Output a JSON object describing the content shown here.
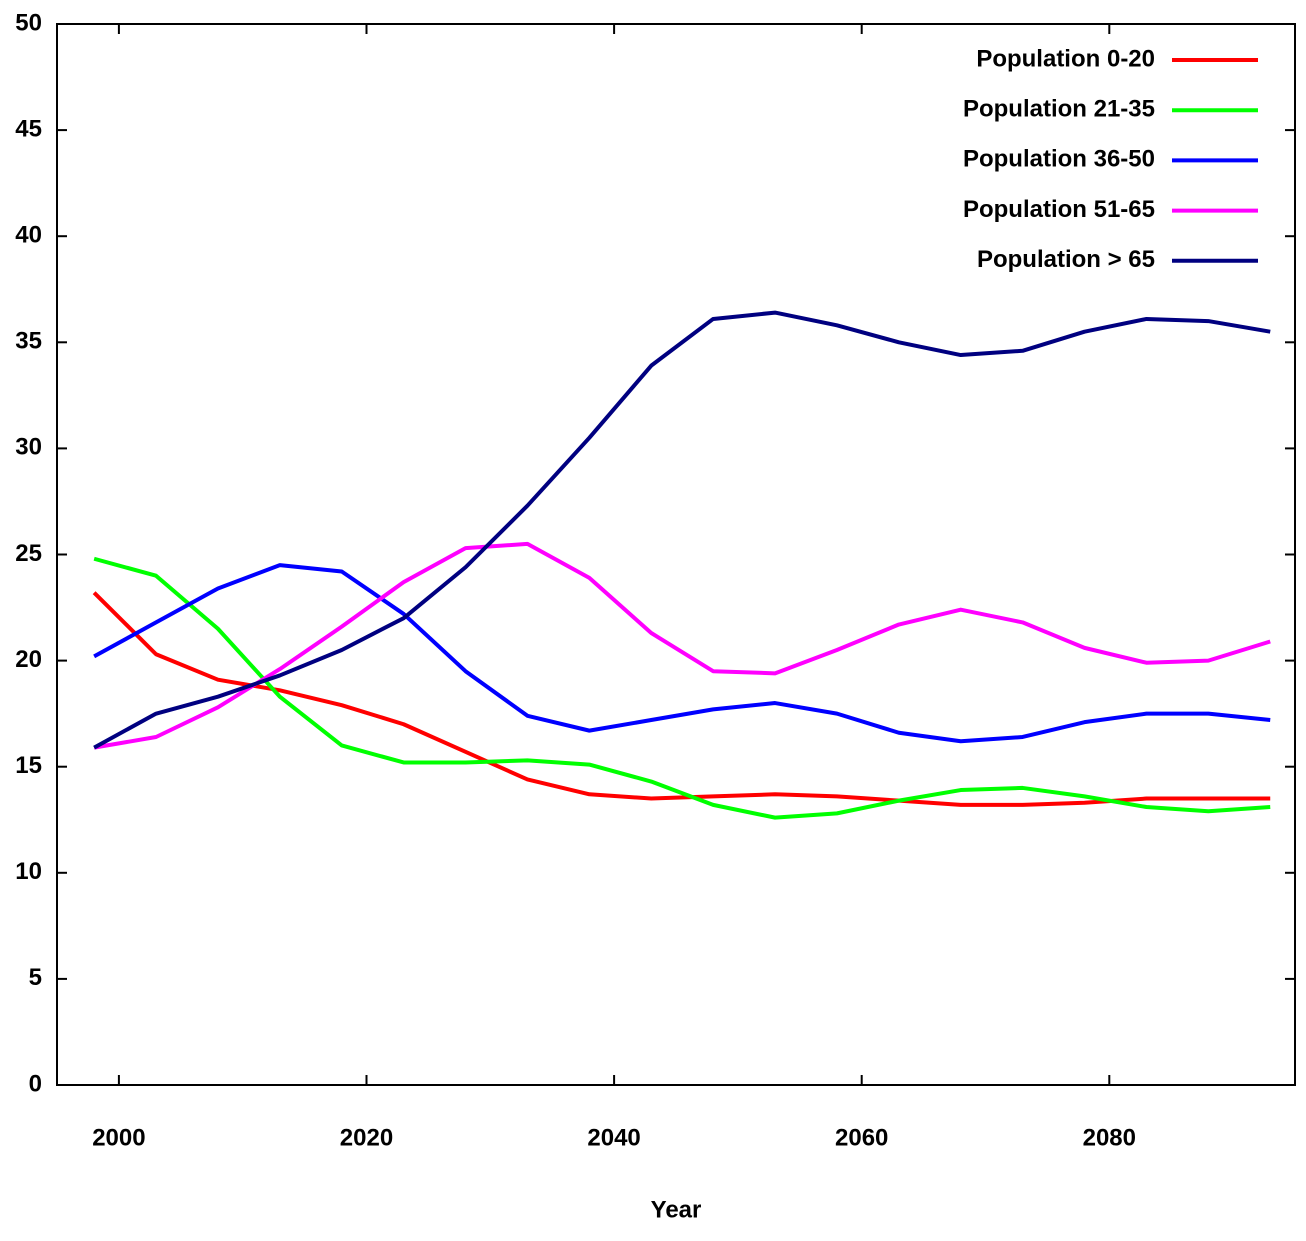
{
  "chart_data": {
    "type": "line",
    "x_label": "Year",
    "x": [
      1998,
      2003,
      2008,
      2013,
      2018,
      2023,
      2028,
      2033,
      2038,
      2043,
      2048,
      2053,
      2058,
      2063,
      2068,
      2073,
      2078,
      2083,
      2088,
      2093
    ],
    "series": [
      {
        "name": "Population 0-20",
        "color": "#ff0000",
        "values": [
          23.2,
          20.3,
          19.1,
          18.6,
          17.9,
          17.0,
          15.7,
          14.4,
          13.7,
          13.5,
          13.6,
          13.7,
          13.6,
          13.4,
          13.2,
          13.2,
          13.3,
          13.5,
          13.5,
          13.5
        ]
      },
      {
        "name": "Population 21-35",
        "color": "#00ff00",
        "values": [
          24.8,
          24.0,
          21.5,
          18.3,
          16.0,
          15.2,
          15.2,
          15.3,
          15.1,
          14.3,
          13.2,
          12.6,
          12.8,
          13.4,
          13.9,
          14.0,
          13.6,
          13.1,
          12.9,
          13.1
        ]
      },
      {
        "name": "Population 36-50",
        "color": "#0000ff",
        "values": [
          20.2,
          21.8,
          23.4,
          24.5,
          24.2,
          22.2,
          19.5,
          17.4,
          16.7,
          17.2,
          17.7,
          18.0,
          17.5,
          16.6,
          16.2,
          16.4,
          17.1,
          17.5,
          17.5,
          17.2
        ]
      },
      {
        "name": "Population 51-65",
        "color": "#ff00ff",
        "values": [
          15.9,
          16.4,
          17.8,
          19.6,
          21.6,
          23.7,
          25.3,
          25.5,
          23.9,
          21.3,
          19.5,
          19.4,
          20.5,
          21.7,
          22.4,
          21.8,
          20.6,
          19.9,
          20.0,
          20.9
        ]
      },
      {
        "name": "Population > 65",
        "color": "#000080",
        "values": [
          15.9,
          17.5,
          18.3,
          19.3,
          20.5,
          22.0,
          24.4,
          27.3,
          30.5,
          33.9,
          36.1,
          36.4,
          35.8,
          35.0,
          34.4,
          34.6,
          35.5,
          36.1,
          36.0,
          35.5
        ]
      }
    ],
    "xlim": [
      1995,
      2095
    ],
    "xticks": [
      2000,
      2020,
      2040,
      2060,
      2080
    ],
    "ylim": [
      0,
      50
    ],
    "yticks": [
      0,
      5,
      10,
      15,
      20,
      25,
      30,
      35,
      40,
      45,
      50
    ],
    "legend": "top-right",
    "grid": false
  }
}
